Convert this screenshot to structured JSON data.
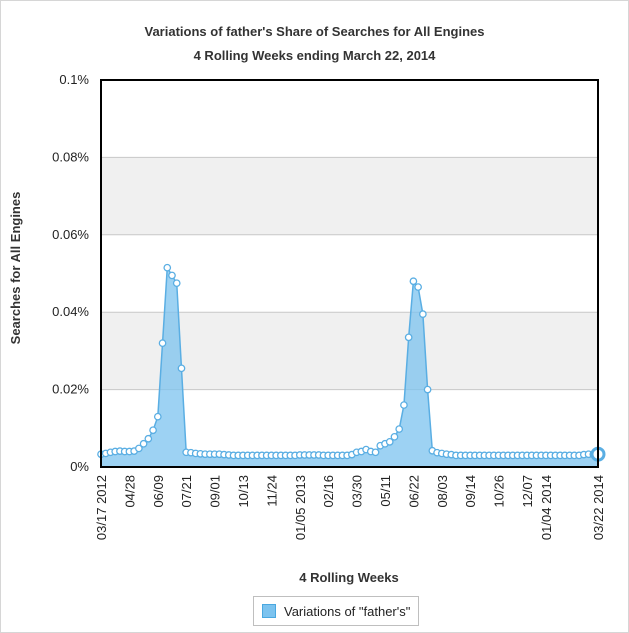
{
  "chart_data": {
    "type": "area",
    "title": "Variations of father's Share of Searches for All Engines",
    "subtitle": "4 Rolling Weeks ending March 22, 2014",
    "xlabel": "4 Rolling Weeks",
    "ylabel": "Searches for All Engines",
    "ylim": [
      0,
      0.1
    ],
    "y_unit": "%",
    "y_ticks": [
      "0%",
      "0.02%",
      "0.04%",
      "0.06%",
      "0.08%",
      "0.1%"
    ],
    "x_tick_labels": [
      "03/17 2012",
      "04/28",
      "06/09",
      "07/21",
      "09/01",
      "10/13",
      "11/24",
      "01/05 2013",
      "02/16",
      "03/30",
      "05/11",
      "06/22",
      "08/03",
      "09/14",
      "10/26",
      "12/07",
      "01/04 2014",
      "03/22 2014"
    ],
    "x_tick_indices": [
      0,
      6,
      12,
      18,
      24,
      30,
      36,
      42,
      48,
      54,
      60,
      66,
      72,
      78,
      84,
      90,
      94,
      105
    ],
    "grid": "horizontal, alternating bands",
    "legend_position": "bottom-center",
    "series_color": "#7cc3ef",
    "series_line_color": "#5aaee3",
    "series": [
      {
        "name": "Variations of \"father's\"",
        "values": [
          0.0033,
          0.0035,
          0.0038,
          0.004,
          0.0041,
          0.004,
          0.004,
          0.0041,
          0.0048,
          0.006,
          0.0073,
          0.0095,
          0.013,
          0.032,
          0.0515,
          0.0495,
          0.0475,
          0.0255,
          0.0038,
          0.0037,
          0.0035,
          0.0034,
          0.0033,
          0.0033,
          0.0033,
          0.0033,
          0.0032,
          0.0031,
          0.003,
          0.003,
          0.003,
          0.003,
          0.003,
          0.003,
          0.003,
          0.003,
          0.003,
          0.003,
          0.003,
          0.003,
          0.003,
          0.003,
          0.0031,
          0.0031,
          0.0031,
          0.0031,
          0.0031,
          0.003,
          0.003,
          0.003,
          0.003,
          0.003,
          0.003,
          0.0032,
          0.0038,
          0.004,
          0.0045,
          0.004,
          0.0038,
          0.0055,
          0.006,
          0.0065,
          0.0078,
          0.0098,
          0.016,
          0.0335,
          0.048,
          0.0465,
          0.0395,
          0.02,
          0.0042,
          0.0037,
          0.0035,
          0.0033,
          0.0032,
          0.003,
          0.003,
          0.003,
          0.003,
          0.003,
          0.003,
          0.003,
          0.003,
          0.003,
          0.003,
          0.003,
          0.003,
          0.003,
          0.003,
          0.003,
          0.003,
          0.003,
          0.003,
          0.003,
          0.003,
          0.003,
          0.003,
          0.003,
          0.003,
          0.003,
          0.003,
          0.003,
          0.0032,
          0.0033,
          0.0033,
          0.0033
        ]
      }
    ]
  }
}
